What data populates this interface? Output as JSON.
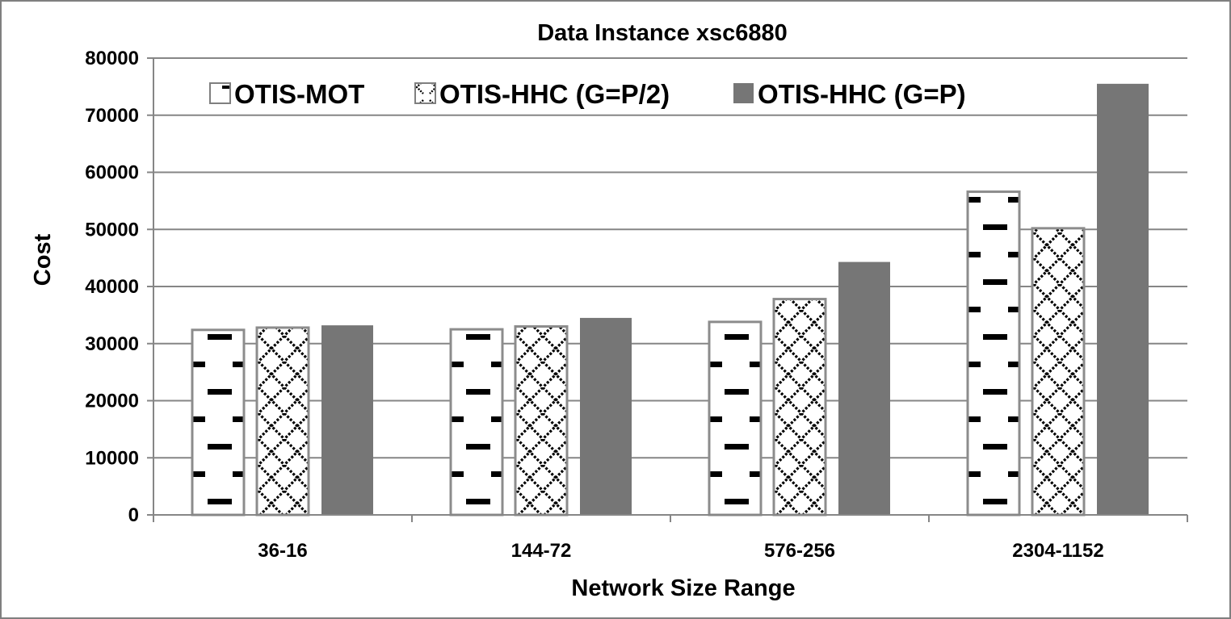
{
  "chart_data": {
    "type": "bar",
    "title": "Data Instance xsc6880",
    "xlabel": "Network Size Range",
    "ylabel": "Cost",
    "categories": [
      "36-16",
      "144-72",
      "576-256",
      "2304-1152"
    ],
    "ylim": [
      0,
      80000
    ],
    "yticks": [
      0,
      10000,
      20000,
      30000,
      40000,
      50000,
      60000,
      70000,
      80000
    ],
    "grid": true,
    "legend_position": "top",
    "series": [
      {
        "name": "OTIS-MOT",
        "values": [
          32400,
          32500,
          33800,
          56600
        ],
        "pattern": "dashes",
        "color": "#000000"
      },
      {
        "name": "OTIS-HHC (G=P/2)",
        "values": [
          32800,
          33000,
          37800,
          50200
        ],
        "pattern": "crosshatch",
        "color": "#000000"
      },
      {
        "name": "OTIS-HHC (G=P)",
        "values": [
          33200,
          34500,
          44300,
          75500
        ],
        "pattern": "solid",
        "color": "#767676"
      }
    ]
  }
}
